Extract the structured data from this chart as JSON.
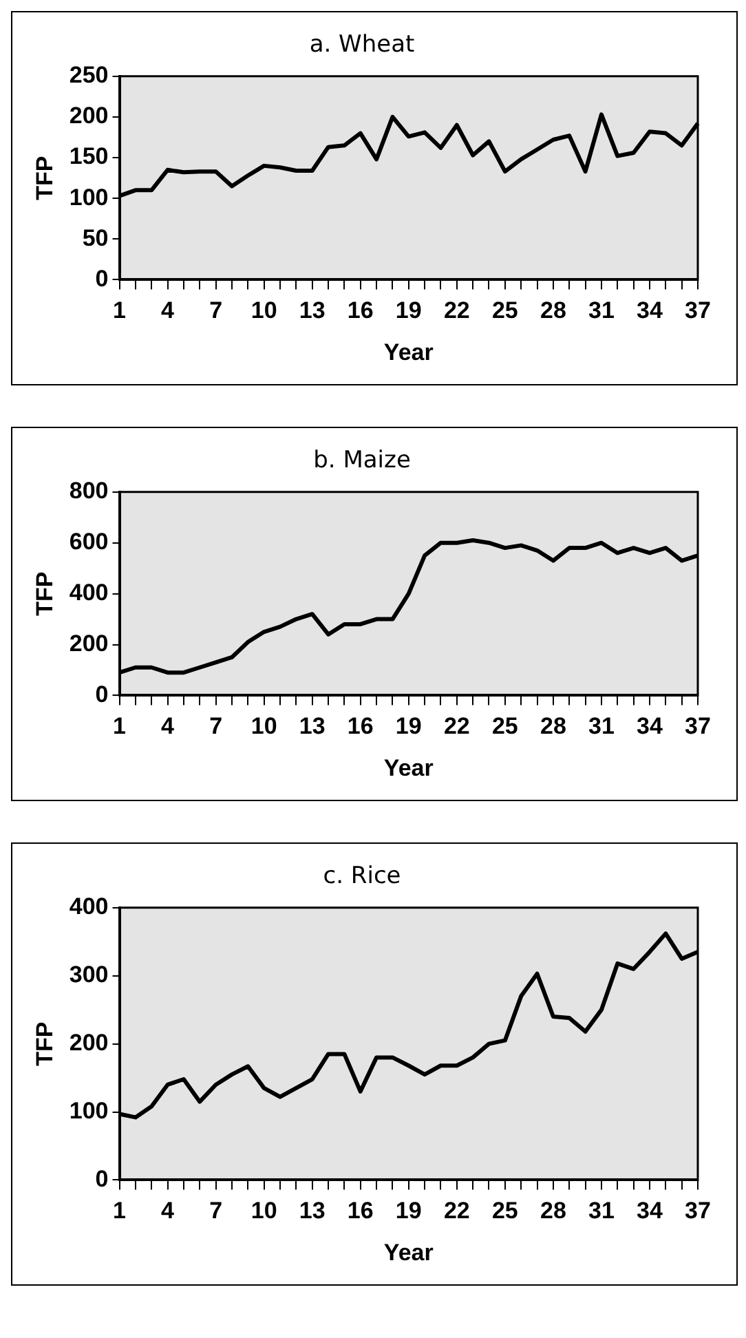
{
  "chart_data": [
    {
      "type": "line",
      "title": "a. Wheat",
      "xlabel": "Year",
      "ylabel": "TFP",
      "categories": [
        "1",
        null,
        null,
        "4",
        null,
        null,
        "7",
        null,
        null,
        "10",
        null,
        null,
        "13",
        null,
        null,
        "16",
        null,
        null,
        "19",
        null,
        null,
        "22",
        null,
        null,
        "25",
        null,
        null,
        "28",
        null,
        null,
        "31",
        null,
        null,
        "34",
        null,
        null,
        "37"
      ],
      "ylim": [
        0,
        250
      ],
      "yticks": [
        0,
        50,
        100,
        150,
        200,
        250
      ],
      "grid": false,
      "legend": false,
      "marker": "none",
      "series": [
        {
          "color": "#000000",
          "values": [
            103,
            110,
            110,
            135,
            132,
            133,
            133,
            115,
            128,
            140,
            138,
            134,
            134,
            163,
            165,
            180,
            148,
            200,
            176,
            181,
            162,
            190,
            153,
            170,
            133,
            148,
            160,
            172,
            177,
            133,
            203,
            152,
            156,
            182,
            180,
            165,
            192
          ]
        }
      ]
    },
    {
      "type": "line",
      "title": "b. Maize",
      "xlabel": "Year",
      "ylabel": "TFP",
      "categories": [
        "1",
        null,
        null,
        "4",
        null,
        null,
        "7",
        null,
        null,
        "10",
        null,
        null,
        "13",
        null,
        null,
        "16",
        null,
        null,
        "19",
        null,
        null,
        "22",
        null,
        null,
        "25",
        null,
        null,
        "28",
        null,
        null,
        "31",
        null,
        null,
        "34",
        null,
        null,
        "37"
      ],
      "ylim": [
        0,
        800
      ],
      "yticks": [
        0,
        200,
        400,
        600,
        800
      ],
      "grid": false,
      "legend": false,
      "marker": "none",
      "series": [
        {
          "color": "#000000",
          "values": [
            90,
            110,
            110,
            90,
            90,
            110,
            130,
            150,
            210,
            250,
            270,
            300,
            320,
            240,
            280,
            280,
            300,
            300,
            400,
            550,
            600,
            600,
            610,
            600,
            580,
            590,
            570,
            530,
            580,
            580,
            600,
            560,
            580,
            560,
            580,
            530,
            550
          ]
        }
      ]
    },
    {
      "type": "line",
      "title": "c. Rice",
      "xlabel": "Year",
      "ylabel": "TFP",
      "categories": [
        "1",
        null,
        null,
        "4",
        null,
        null,
        "7",
        null,
        null,
        "10",
        null,
        null,
        "13",
        null,
        null,
        "16",
        null,
        null,
        "19",
        null,
        null,
        "22",
        null,
        null,
        "25",
        null,
        null,
        "28",
        null,
        null,
        "31",
        null,
        null,
        "34",
        null,
        null,
        "37"
      ],
      "ylim": [
        0,
        400
      ],
      "yticks": [
        0,
        100,
        200,
        300,
        400
      ],
      "grid": false,
      "legend": false,
      "marker": "none",
      "series": [
        {
          "color": "#000000",
          "values": [
            97,
            92,
            108,
            140,
            148,
            115,
            140,
            155,
            167,
            135,
            122,
            135,
            148,
            185,
            185,
            130,
            180,
            180,
            168,
            155,
            168,
            168,
            180,
            200,
            205,
            270,
            303,
            240,
            238,
            218,
            250,
            318,
            310,
            335,
            362,
            325,
            335
          ]
        }
      ]
    }
  ]
}
